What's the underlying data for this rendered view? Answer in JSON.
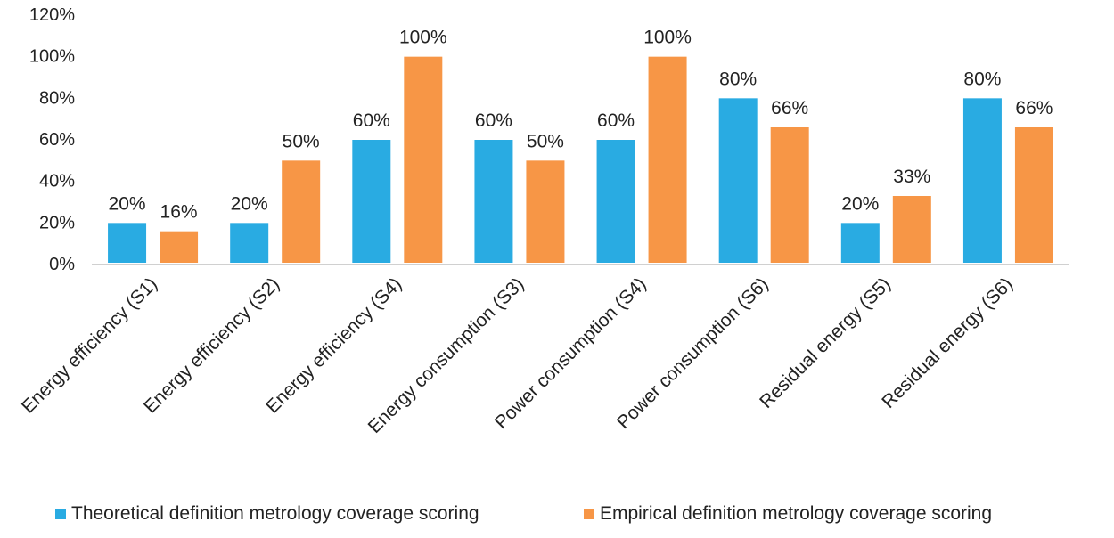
{
  "chart_data": {
    "type": "bar",
    "title": "",
    "xlabel": "",
    "ylabel": "",
    "ylim": [
      0,
      120
    ],
    "yticks": [
      "0%",
      "20%",
      "40%",
      "60%",
      "80%",
      "100%",
      "120%"
    ],
    "categories": [
      "Energy efficiency (S1)",
      "Energy efficiency (S2)",
      "Energy efficiency (S4)",
      "Energy consumption (S3)",
      "Power consumption (S4)",
      "Power consumption (S6)",
      "Residual energy (S5)",
      "Residual energy (S6)"
    ],
    "series": [
      {
        "name": "Theoretical definition metrology coverage scoring",
        "color": "#29ABE2",
        "values": [
          20,
          20,
          60,
          60,
          60,
          80,
          20,
          80
        ],
        "labels": [
          "20%",
          "20%",
          "60%",
          "60%",
          "60%",
          "80%",
          "20%",
          "80%"
        ]
      },
      {
        "name": "Empirical definition metrology coverage scoring",
        "color": "#F79646",
        "values": [
          16,
          50,
          100,
          50,
          100,
          66,
          33,
          66
        ],
        "labels": [
          "16%",
          "50%",
          "100%",
          "50%",
          "100%",
          "66%",
          "33%",
          "66%"
        ]
      }
    ],
    "legend": "bottom",
    "grid": false
  }
}
